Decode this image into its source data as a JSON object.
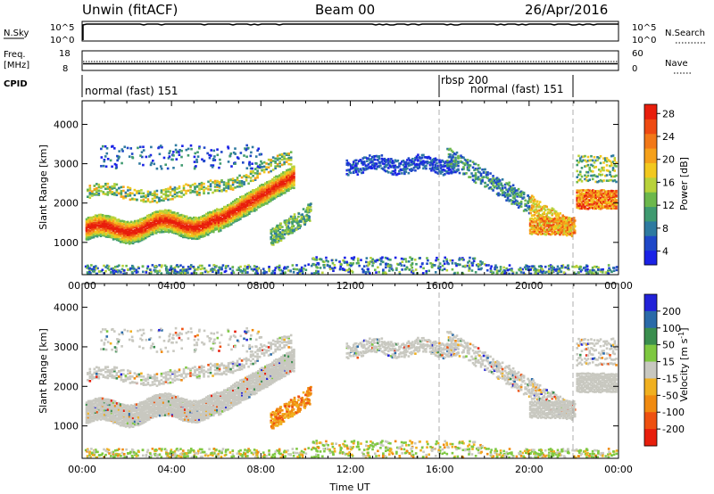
{
  "header": {
    "station": "Unwin (fitACF)",
    "beam": "Beam 00",
    "date": "26/Apr/2016"
  },
  "top_panels": {
    "nsky_label": "N.Sky",
    "nsky_ticks": [
      "10^5",
      "10^0"
    ],
    "nsearch_label": "N.Search",
    "nsearch_ticks": [
      "10^5",
      "10^0"
    ],
    "freq_label_1": "Freq.",
    "freq_label_2": "[MHz]",
    "freq_ticks": [
      "18",
      "8"
    ],
    "nave_label": "Nave",
    "nave_ticks": [
      "60",
      "0"
    ],
    "cpid_label": "CPID",
    "cpid_segments": [
      {
        "name": "normal (fast) 151",
        "start_hour": 0,
        "end_hour": 16
      },
      {
        "name": "rbsp 200",
        "start_hour": 16,
        "end_hour": 16.1
      },
      {
        "name": "normal (fast) 151",
        "start_hour": 16.1,
        "end_hour": 22
      }
    ]
  },
  "chart_data": [
    {
      "type": "heatmap",
      "ylabel": "Slant Range [km]",
      "yticks": [
        1000,
        2000,
        3000,
        4000
      ],
      "xticks": [
        "00:00",
        "04:00",
        "08:00",
        "12:00",
        "16:00",
        "20:00",
        "00:00"
      ],
      "colorbar": {
        "label": "Power [dB]",
        "ticks": [
          "4",
          "8",
          "12",
          "16",
          "20",
          "24",
          "28"
        ],
        "colors": [
          "#1a22e6",
          "#1f48c8",
          "#2e7aa0",
          "#3f9a70",
          "#6cb84c",
          "#b8d23a",
          "#f2c81e",
          "#f5a01a",
          "#f27818",
          "#ee4a12",
          "#e81e0c"
        ]
      }
    },
    {
      "type": "heatmap",
      "ylabel": "Slant Range [km]",
      "yticks": [
        1000,
        2000,
        3000,
        4000
      ],
      "xticks": [
        "00:00",
        "04:00",
        "08:00",
        "12:00",
        "16:00",
        "20:00",
        "00:00"
      ],
      "xlabel": "Time UT",
      "colorbar": {
        "label": "Velocity [m s^-1]",
        "ticks": [
          "200",
          "100",
          "50",
          "15",
          "-15",
          "-50",
          "-100",
          "-200"
        ],
        "colors": [
          "#2222d8",
          "#2a6aa8",
          "#3a8e4e",
          "#7ec840",
          "#c8c8c0",
          "#f0b020",
          "#f08a10",
          "#ee5010",
          "#e81e0c"
        ]
      }
    }
  ]
}
